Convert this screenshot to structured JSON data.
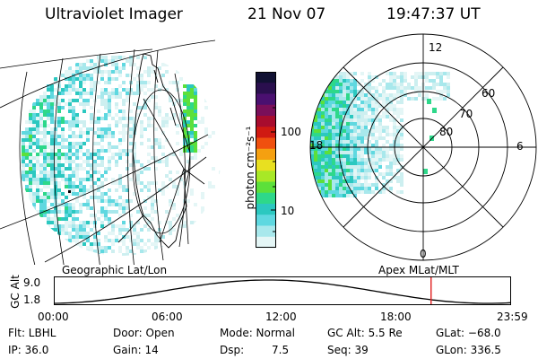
{
  "header": {
    "instrument": "Ultraviolet Imager",
    "date": "21 Nov 07",
    "time": "19:47:37 UT"
  },
  "colorbar": {
    "unit_label": "photon cm⁻²s⁻¹",
    "ticks": [
      "100",
      "10"
    ],
    "colors": [
      "#111133",
      "#2a0f4e",
      "#4a1070",
      "#7a0f5a",
      "#a80c2e",
      "#d01a12",
      "#f0500f",
      "#f5a010",
      "#e8e020",
      "#a8e826",
      "#5ce03a",
      "#2ed88a",
      "#2cc8c0",
      "#5fd8e0",
      "#a8e8ec",
      "#e4f6f6"
    ]
  },
  "left_panel": {
    "caption": "Geographic Lat/Lon"
  },
  "right_panel": {
    "caption": "Apex MLat/MLT",
    "mlt_labels": {
      "top": "12",
      "left": "18",
      "right": "6",
      "bottom": "0"
    },
    "lat_labels": [
      "60",
      "70",
      "80"
    ]
  },
  "timeline": {
    "ylabel": "GC Alt",
    "y_ticks": [
      "9.0",
      "1.8"
    ],
    "x_ticks": [
      "00:00",
      "06:00",
      "12:00",
      "18:00",
      "23:59"
    ],
    "current_time_fraction": 0.825,
    "marker_color": "#e02020"
  },
  "status": {
    "flt": "Flt: LBHL",
    "ip": "IP: 36.0",
    "door": "Door: Open",
    "gain": "Gain: 14",
    "mode": "Mode: Normal",
    "dsp_label": "Dsp:",
    "dsp_value": "7.5",
    "gc_alt": "GC Alt: 5.5 Re",
    "seq": "Seq: 39",
    "glat": "GLat: −68.0",
    "glon": "GLon: 336.5"
  }
}
